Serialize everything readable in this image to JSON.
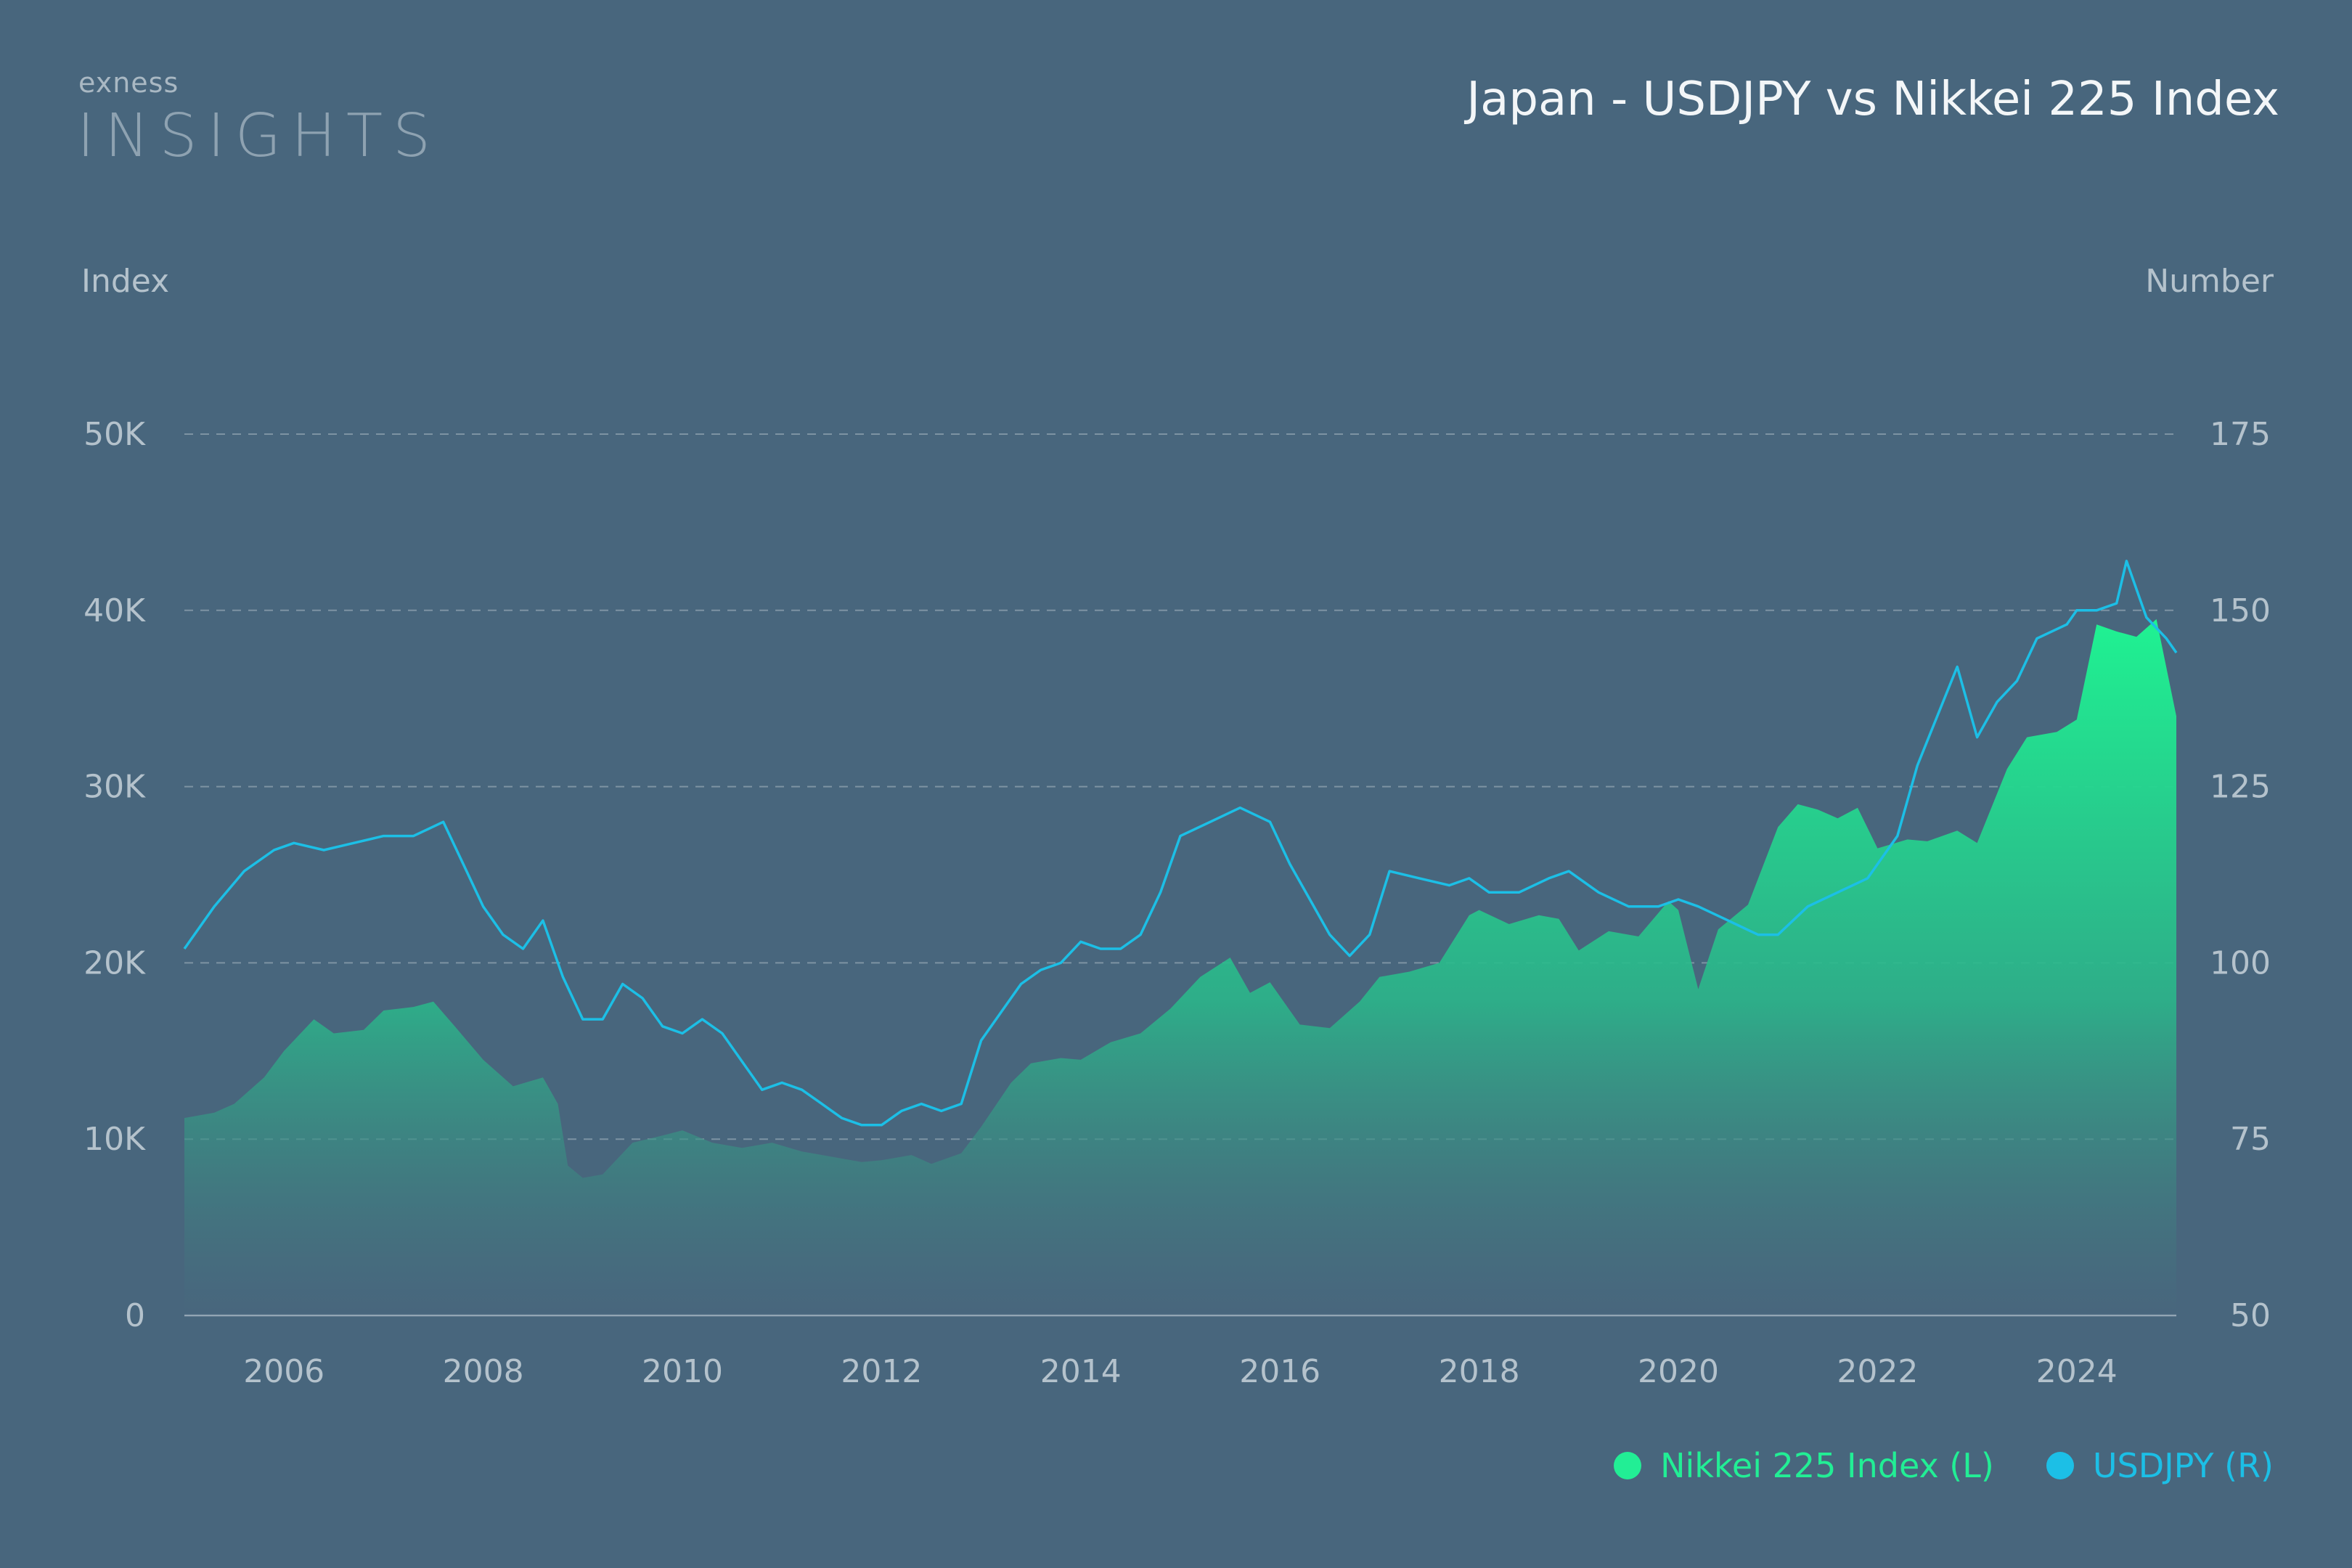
{
  "brand": {
    "small": "exness",
    "big": "INSIGHTS"
  },
  "colors": {
    "background": "#48667d",
    "nikkei": "#22ee95",
    "usdjpy": "#1cbfe6",
    "grid": "#8fa2b0",
    "text": "#b4c2cc"
  },
  "chart_data": {
    "type": "line",
    "title": "Japan - USDJPY vs Nikkei 225 Index",
    "y_left_label": "Index",
    "y_right_label": "Number",
    "xlim": [
      2005.0,
      2025.0
    ],
    "ylim_left": [
      0,
      50000
    ],
    "ylim_right": [
      50,
      175
    ],
    "x_ticks": [
      2006,
      2008,
      2010,
      2012,
      2014,
      2016,
      2018,
      2020,
      2022,
      2024
    ],
    "y_left_ticks": [
      {
        "value": 0,
        "label": "0"
      },
      {
        "value": 10000,
        "label": "10K"
      },
      {
        "value": 20000,
        "label": "20K"
      },
      {
        "value": 30000,
        "label": "30K"
      },
      {
        "value": 40000,
        "label": "40K"
      },
      {
        "value": 50000,
        "label": "50K"
      }
    ],
    "y_right_ticks": [
      {
        "value": 50,
        "label": "50"
      },
      {
        "value": 75,
        "label": "75"
      },
      {
        "value": 100,
        "label": "100"
      },
      {
        "value": 125,
        "label": "125"
      },
      {
        "value": 150,
        "label": "150"
      },
      {
        "value": 175,
        "label": "175"
      }
    ],
    "grid": "horizontal dashed",
    "legend_position": "bottom-right",
    "series": [
      {
        "name": "Nikkei 225 Index (L)",
        "axis": "left",
        "style": "area",
        "x": [
          2005.0,
          2005.3,
          2005.5,
          2005.8,
          2006.0,
          2006.3,
          2006.5,
          2006.8,
          2007.0,
          2007.3,
          2007.5,
          2007.7,
          2008.0,
          2008.3,
          2008.6,
          2008.75,
          2008.85,
          2009.0,
          2009.2,
          2009.5,
          2009.8,
          2010.0,
          2010.3,
          2010.6,
          2010.9,
          2011.2,
          2011.5,
          2011.8,
          2012.0,
          2012.3,
          2012.5,
          2012.8,
          2013.0,
          2013.3,
          2013.5,
          2013.8,
          2014.0,
          2014.3,
          2014.6,
          2014.9,
          2015.2,
          2015.5,
          2015.7,
          2015.9,
          2016.2,
          2016.5,
          2016.8,
          2017.0,
          2017.3,
          2017.6,
          2017.9,
          2018.0,
          2018.3,
          2018.6,
          2018.8,
          2019.0,
          2019.3,
          2019.6,
          2019.9,
          2020.0,
          2020.2,
          2020.4,
          2020.7,
          2021.0,
          2021.2,
          2021.4,
          2021.6,
          2021.8,
          2022.0,
          2022.3,
          2022.5,
          2022.8,
          2023.0,
          2023.3,
          2023.5,
          2023.8,
          2024.0,
          2024.2,
          2024.4,
          2024.6,
          2024.8,
          2025.0
        ],
        "values": [
          11200,
          11500,
          12000,
          13500,
          15000,
          16800,
          16000,
          16200,
          17300,
          17500,
          17800,
          16500,
          14500,
          13000,
          13500,
          12000,
          8500,
          7800,
          8000,
          9800,
          10200,
          10500,
          9800,
          9500,
          9800,
          9300,
          9000,
          8700,
          8800,
          9100,
          8600,
          9200,
          10700,
          13200,
          14300,
          14600,
          14500,
          15500,
          16000,
          17400,
          19200,
          20300,
          18300,
          18900,
          16500,
          16300,
          17800,
          19200,
          19500,
          20000,
          22700,
          23000,
          22200,
          22700,
          22500,
          20700,
          21800,
          21500,
          23500,
          23000,
          18500,
          21900,
          23300,
          27700,
          29000,
          28700,
          28200,
          28800,
          26500,
          27000,
          26900,
          27500,
          26800,
          31000,
          32800,
          33100,
          33800,
          39200,
          38800,
          38500,
          39500,
          34000
        ]
      },
      {
        "name": "USDJPY (R)",
        "axis": "right",
        "style": "line",
        "x": [
          2005.0,
          2005.3,
          2005.6,
          2005.9,
          2006.1,
          2006.4,
          2006.7,
          2007.0,
          2007.3,
          2007.6,
          2007.8,
          2008.0,
          2008.2,
          2008.4,
          2008.6,
          2008.8,
          2009.0,
          2009.2,
          2009.4,
          2009.6,
          2009.8,
          2010.0,
          2010.2,
          2010.4,
          2010.6,
          2010.8,
          2011.0,
          2011.2,
          2011.4,
          2011.6,
          2011.8,
          2012.0,
          2012.2,
          2012.4,
          2012.6,
          2012.8,
          2013.0,
          2013.2,
          2013.4,
          2013.6,
          2013.8,
          2014.0,
          2014.2,
          2014.4,
          2014.6,
          2014.8,
          2015.0,
          2015.3,
          2015.6,
          2015.9,
          2016.1,
          2016.3,
          2016.5,
          2016.7,
          2016.9,
          2017.1,
          2017.4,
          2017.7,
          2017.9,
          2018.1,
          2018.4,
          2018.7,
          2018.9,
          2019.2,
          2019.5,
          2019.8,
          2020.0,
          2020.2,
          2020.5,
          2020.8,
          2021.0,
          2021.3,
          2021.6,
          2021.9,
          2022.0,
          2022.2,
          2022.4,
          2022.6,
          2022.8,
          2023.0,
          2023.2,
          2023.4,
          2023.6,
          2023.9,
          2024.0,
          2024.2,
          2024.4,
          2024.5,
          2024.7,
          2024.9,
          2025.0
        ],
        "values": [
          102,
          108,
          113,
          116,
          117,
          116,
          117,
          118,
          118,
          120,
          114,
          108,
          104,
          102,
          106,
          98,
          92,
          92,
          97,
          95,
          91,
          90,
          92,
          90,
          86,
          82,
          83,
          82,
          80,
          78,
          77,
          77,
          79,
          80,
          79,
          80,
          89,
          93,
          97,
          99,
          100,
          103,
          102,
          102,
          104,
          110,
          118,
          120,
          122,
          120,
          114,
          109,
          104,
          101,
          104,
          113,
          112,
          111,
          112,
          110,
          110,
          112,
          113,
          110,
          108,
          108,
          109,
          108,
          106,
          104,
          104,
          108,
          110,
          112,
          114,
          118,
          128,
          135,
          142,
          132,
          137,
          140,
          146,
          148,
          150,
          150,
          151,
          157,
          149,
          146,
          144
        ]
      }
    ]
  }
}
